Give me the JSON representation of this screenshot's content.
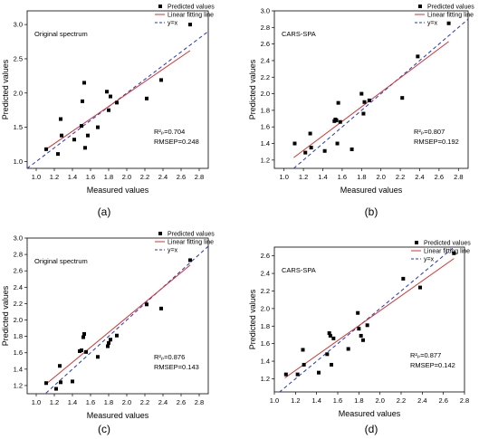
{
  "chart_data": [
    {
      "type": "scatter",
      "panel_label": "(a)",
      "inset_title": "Original spectrum",
      "xlabel": "Measured values",
      "ylabel": "Predicted values",
      "xlim": [
        0.9,
        2.9
      ],
      "ylim": [
        0.9,
        3.2
      ],
      "xticks": [
        "1.0",
        "1.2",
        "1.4",
        "1.6",
        "1.8",
        "2.0",
        "2.2",
        "2.4",
        "2.6",
        "2.8"
      ],
      "yticks": [
        "1.0",
        "1.5",
        "2.0",
        "2.5",
        "3.0"
      ],
      "r2_text": "R²ₚ=0.704",
      "rmsep_text": "RMSEP=0.248",
      "legend": {
        "predicted": "Predicted values",
        "fit": "Linear fitting line",
        "yx": "y=x"
      },
      "points": [
        [
          1.11,
          1.18
        ],
        [
          1.24,
          1.11
        ],
        [
          1.27,
          1.62
        ],
        [
          1.28,
          1.38
        ],
        [
          1.42,
          1.32
        ],
        [
          1.5,
          1.52
        ],
        [
          1.51,
          1.88
        ],
        [
          1.53,
          2.15
        ],
        [
          1.54,
          1.2
        ],
        [
          1.57,
          1.38
        ],
        [
          1.68,
          1.5
        ],
        [
          1.78,
          2.02
        ],
        [
          1.8,
          1.75
        ],
        [
          1.82,
          1.95
        ],
        [
          1.89,
          1.86
        ],
        [
          2.22,
          1.92
        ],
        [
          2.38,
          2.19
        ],
        [
          2.7,
          3.0
        ]
      ],
      "fit_line": [
        [
          1.1,
          1.17
        ],
        [
          2.7,
          2.62
        ]
      ],
      "yx_range": [
        0.9,
        2.9
      ]
    },
    {
      "type": "scatter",
      "panel_label": "(b)",
      "inset_title": "CARS-SPA",
      "xlabel": "Measured values",
      "ylabel": "Predicted values",
      "xlim": [
        0.9,
        2.9
      ],
      "ylim": [
        1.1,
        3.0
      ],
      "xticks": [
        "1.0",
        "1.2",
        "1.4",
        "1.6",
        "1.8",
        "2.0",
        "2.2",
        "2.4",
        "2.6",
        "2.8"
      ],
      "yticks": [
        "1.2",
        "1.4",
        "1.6",
        "1.8",
        "2.0",
        "2.2",
        "2.4",
        "2.6",
        "2.8",
        "3.0"
      ],
      "r2_text": "R²ₚ=0.807",
      "rmsep_text": "RMSEP=0.192",
      "legend": {
        "predicted": "Predicted values",
        "fit": "Linear fitting line",
        "yx": "y=x"
      },
      "points": [
        [
          1.11,
          1.4
        ],
        [
          1.22,
          1.29
        ],
        [
          1.27,
          1.52
        ],
        [
          1.28,
          1.35
        ],
        [
          1.42,
          1.31
        ],
        [
          1.52,
          1.67
        ],
        [
          1.53,
          1.69
        ],
        [
          1.54,
          1.68
        ],
        [
          1.55,
          1.4
        ],
        [
          1.56,
          1.89
        ],
        [
          1.58,
          1.66
        ],
        [
          1.7,
          1.33
        ],
        [
          1.8,
          2.0
        ],
        [
          1.82,
          1.76
        ],
        [
          1.83,
          1.9
        ],
        [
          1.88,
          1.92
        ],
        [
          2.22,
          1.95
        ],
        [
          2.38,
          2.45
        ],
        [
          2.7,
          2.85
        ]
      ],
      "fit_line": [
        [
          1.1,
          1.23
        ],
        [
          2.7,
          2.63
        ]
      ],
      "yx_range": [
        0.9,
        2.9
      ]
    },
    {
      "type": "scatter",
      "panel_label": "(c)",
      "inset_title": "Original spectrum",
      "xlabel": "Measured values",
      "ylabel": "Predicted values",
      "xlim": [
        0.9,
        2.9
      ],
      "ylim": [
        1.1,
        3.0
      ],
      "xticks": [
        "1.0",
        "1.2",
        "1.4",
        "1.6",
        "1.8",
        "2.0",
        "2.2",
        "2.4",
        "2.6",
        "2.8"
      ],
      "yticks": [
        "1.2",
        "1.4",
        "1.6",
        "1.8",
        "2.0",
        "2.2",
        "2.4",
        "2.6",
        "2.8",
        "3.0"
      ],
      "r2_text": "R²ₚ=0.876",
      "rmsep_text": "RMSEP=0.143",
      "legend": {
        "predicted": "Predicted values",
        "fit": "Linear fitting line",
        "yx": "y=x"
      },
      "points": [
        [
          1.11,
          1.23
        ],
        [
          1.22,
          1.16
        ],
        [
          1.26,
          1.44
        ],
        [
          1.27,
          1.24
        ],
        [
          1.4,
          1.25
        ],
        [
          1.48,
          1.62
        ],
        [
          1.5,
          1.63
        ],
        [
          1.52,
          1.79
        ],
        [
          1.53,
          1.83
        ],
        [
          1.55,
          1.61
        ],
        [
          1.68,
          1.55
        ],
        [
          1.79,
          1.68
        ],
        [
          1.8,
          1.72
        ],
        [
          1.82,
          1.76
        ],
        [
          1.89,
          1.81
        ],
        [
          2.22,
          2.19
        ],
        [
          2.38,
          2.14
        ],
        [
          2.7,
          2.73
        ]
      ],
      "fit_line": [
        [
          1.1,
          1.21
        ],
        [
          2.7,
          2.67
        ]
      ],
      "yx_range": [
        0.9,
        2.9
      ]
    },
    {
      "type": "scatter",
      "panel_label": "(d)",
      "inset_title": "CARS-SPA",
      "xlabel": "Measured values",
      "ylabel": "Predicted values",
      "xlim": [
        1.0,
        2.8
      ],
      "ylim": [
        1.05,
        2.7
      ],
      "xticks": [
        "1.0",
        "1.2",
        "1.4",
        "1.6",
        "1.8",
        "2.0",
        "2.2",
        "2.4",
        "2.6",
        "2.8"
      ],
      "yticks": [
        "1.2",
        "1.4",
        "1.6",
        "1.8",
        "2.0",
        "2.2",
        "2.4",
        "2.6"
      ],
      "r2_text": "R²ₚ=0.877",
      "rmsep_text": "RMSEP=0.142",
      "legend": {
        "predicted": "Predicted values",
        "fit": "Linear fitting line",
        "yx": "y=x"
      },
      "points": [
        [
          1.11,
          1.25
        ],
        [
          1.22,
          1.25
        ],
        [
          1.27,
          1.53
        ],
        [
          1.28,
          1.36
        ],
        [
          1.42,
          1.27
        ],
        [
          1.5,
          1.48
        ],
        [
          1.52,
          1.72
        ],
        [
          1.53,
          1.69
        ],
        [
          1.54,
          1.36
        ],
        [
          1.56,
          1.66
        ],
        [
          1.7,
          1.54
        ],
        [
          1.79,
          1.95
        ],
        [
          1.8,
          1.77
        ],
        [
          1.82,
          1.69
        ],
        [
          1.84,
          1.64
        ],
        [
          1.88,
          1.81
        ],
        [
          2.22,
          2.34
        ],
        [
          2.38,
          2.24
        ],
        [
          2.7,
          2.63
        ]
      ],
      "fit_line": [
        [
          1.1,
          1.21
        ],
        [
          2.7,
          2.57
        ]
      ],
      "yx_range": [
        1.0,
        2.8
      ]
    }
  ]
}
